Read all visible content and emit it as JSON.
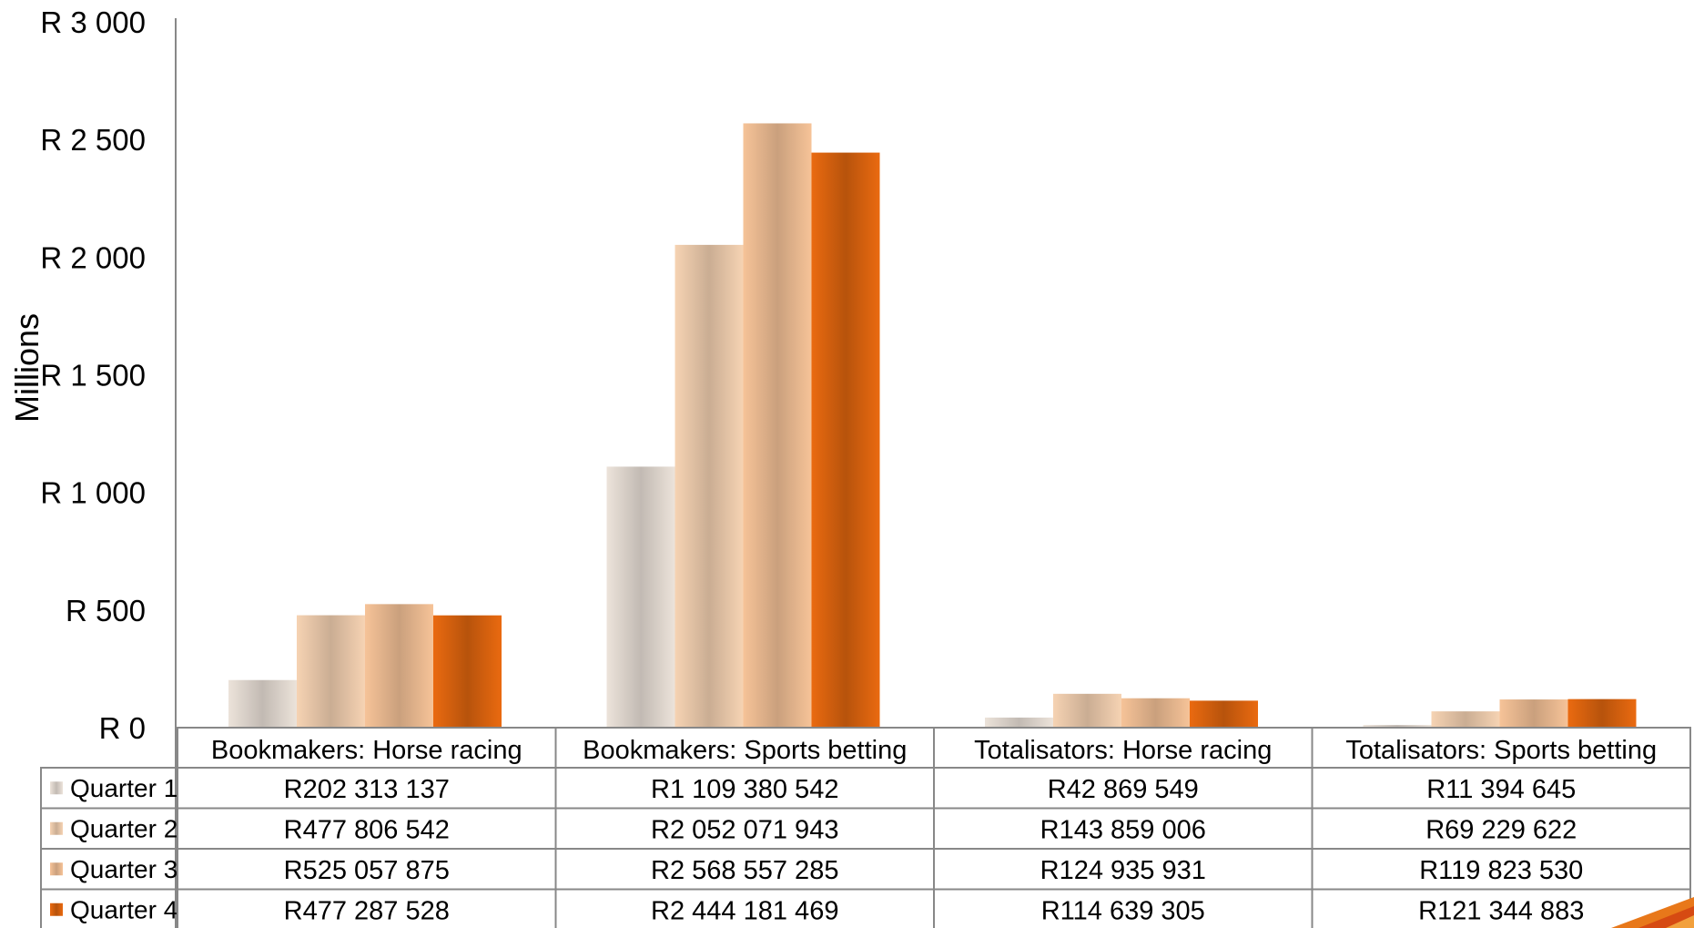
{
  "chart_data": {
    "type": "bar",
    "ylabel": "Millions",
    "ylim": [
      0,
      3000
    ],
    "yticks": [
      0,
      500,
      1000,
      1500,
      2000,
      2500,
      3000
    ],
    "ytick_labels": [
      "R 0",
      "R 500",
      "R 1 000",
      "R 1 500",
      "R 2 000",
      "R 2 500",
      "R 3 000"
    ],
    "categories": [
      "Bookmakers: Horse racing",
      "Bookmakers: Sports betting",
      "Totalisators: Horse racing",
      "Totalisators: Sports betting"
    ],
    "series": [
      {
        "name": "Quarter 1",
        "color": "#ece3da",
        "values": [
          202.313137,
          1109.380542,
          42.869549,
          11.394645
        ],
        "labels": [
          "R202 313 137",
          "R1 109 380 542",
          "R42 869 549",
          "R11 394 645"
        ]
      },
      {
        "name": "Quarter 2",
        "color": "#f6d3b3",
        "values": [
          477.806542,
          2052.071943,
          143.859006,
          69.229622
        ],
        "labels": [
          "R477 806 542",
          "R2 052 071 943",
          "R143 859 006",
          "R69 229 622"
        ]
      },
      {
        "name": "Quarter 3",
        "color": "#f6c398",
        "values": [
          525.057875,
          2568.557285,
          124.935931,
          119.82353
        ],
        "labels": [
          "R525 057 875",
          "R2 568 557 285",
          "R124 935 931",
          "R119 823 530"
        ]
      },
      {
        "name": "Quarter 4",
        "color": "#ea6a10",
        "values": [
          477.287528,
          2444.181469,
          114.639305,
          121.344883
        ],
        "labels": [
          "R477 287 528",
          "R2 444 181 469",
          "R114 639 305",
          "R121 344 883"
        ]
      }
    ],
    "grid": false,
    "legend": "data-table"
  }
}
